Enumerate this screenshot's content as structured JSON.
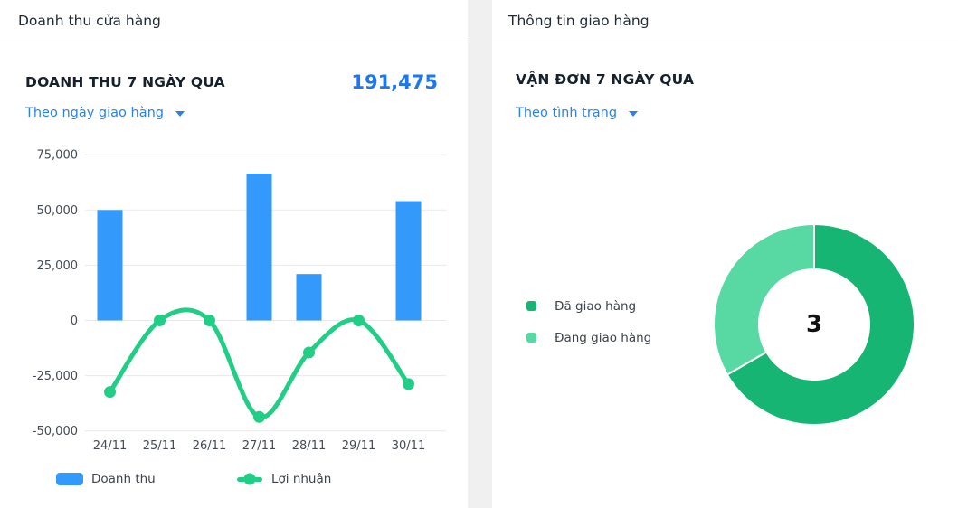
{
  "left_panel": {
    "header": "Doanh thu cửa hàng",
    "section_title": "DOANH THU 7 NGÀY QUA",
    "total_value": "191,475",
    "filter_label": "Theo ngày giao hàng",
    "legend": [
      "Doanh thu",
      "Lợi nhuận"
    ]
  },
  "right_panel": {
    "header": "Thông tin giao hàng",
    "section_title": "VẬN ĐƠN 7 NGÀY QUA",
    "filter_label": "Theo tình trạng",
    "legend": [
      "Đã giao hàng",
      "Đang giao hàng"
    ],
    "donut_center_value": "3"
  },
  "colors": {
    "accent_blue": "#1b78ee",
    "link_blue": "#2e81e4",
    "bar_blue": "#3399fb",
    "line_green": "#21ce85",
    "donut_dark_green": "#17b573",
    "donut_light_green": "#58d9a4",
    "grid_gray": "#e9e9eb",
    "axis_text": "#454b54"
  },
  "chart_data": [
    {
      "type": "bar",
      "subtype": "bar-line-combo",
      "title": "DOANH THU 7 NGÀY QUA",
      "total": 191475,
      "categories": [
        "24/11",
        "25/11",
        "26/11",
        "27/11",
        "28/11",
        "29/11",
        "30/11"
      ],
      "series": [
        {
          "name": "Doanh thu",
          "type": "bar",
          "color": "#3399fb",
          "values": [
            50000,
            0,
            0,
            66475,
            21000,
            0,
            54000
          ]
        },
        {
          "name": "Lợi nhuận",
          "type": "line",
          "color": "#21ce85",
          "values": [
            -32400,
            0,
            0,
            -43700,
            -14500,
            0,
            -28800
          ]
        }
      ],
      "ylim": [
        -50000,
        75000
      ],
      "ytick_values": [
        75000,
        50000,
        25000,
        0,
        -25000,
        -50000
      ],
      "ytick_labels": [
        "75,000",
        "50,000",
        "25,000",
        "0",
        "-25,000",
        "-50,000"
      ],
      "grid": true,
      "legend_position": "bottom"
    },
    {
      "type": "pie",
      "subtype": "donut",
      "title": "VẬN ĐƠN 7 NGÀY QUA",
      "labels": [
        "Đã giao hàng",
        "Đang giao hàng"
      ],
      "values": [
        2,
        1
      ],
      "colors": [
        "#17b573",
        "#58d9a4"
      ],
      "center_label": "3",
      "start_angle_deg": 0,
      "direction": "clockwise",
      "legend_position": "left"
    }
  ]
}
